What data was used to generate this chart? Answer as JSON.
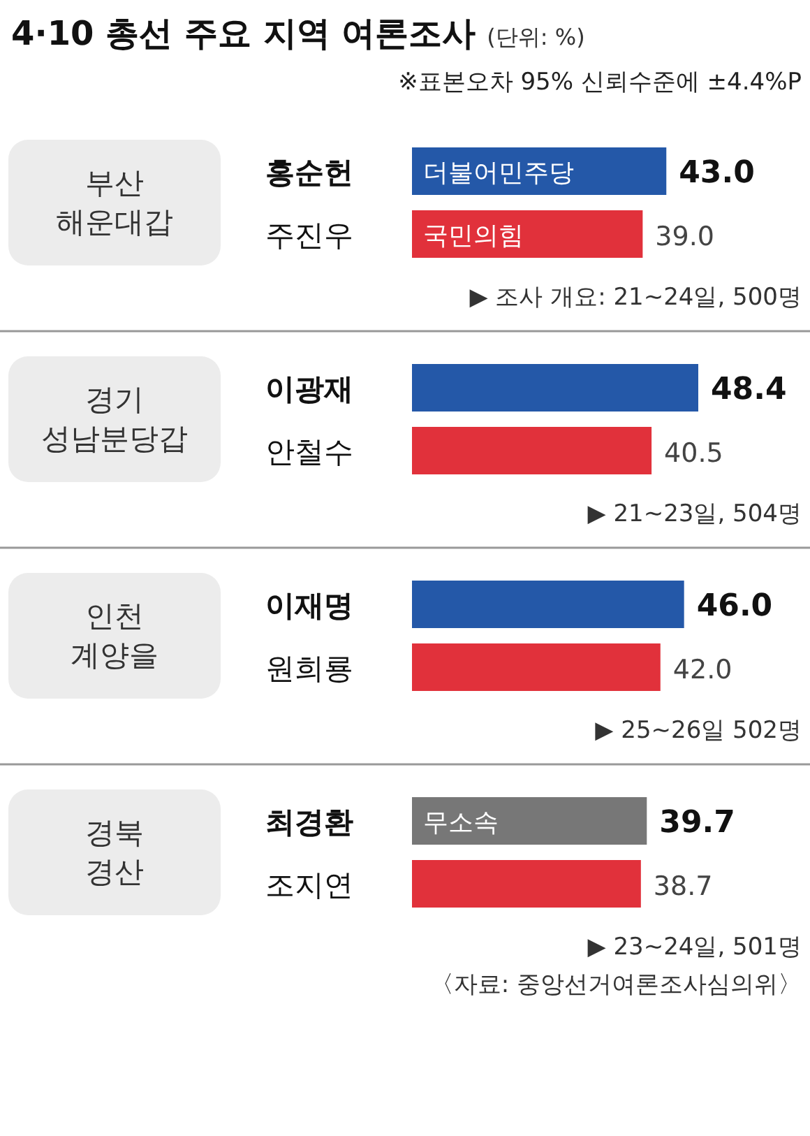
{
  "chart_data": [
    {
      "type": "other",
      "title": "4·10 총선 주요 지역 여론조사",
      "subtitle": "(단위: %)",
      "annotations": [
        "※표본오차 95% 신뢰수준에 ±4.4%P"
      ]
    },
    {
      "type": "bar",
      "orientation": "horizontal",
      "ylabel": "부산 해운대갑",
      "categories": [
        "홍순헌",
        "주진우"
      ],
      "values": [
        43.0,
        39.0
      ],
      "value_labels": [
        "43.0",
        "39.0"
      ],
      "colors": [
        "#2458a8",
        "#e1313b"
      ],
      "annotations": [
        {
          "text": "더불어민주당",
          "y": "홍순헌"
        },
        {
          "text": "국민의힘",
          "y": "주진우"
        },
        "▶ 조사 개요: 21~24일, 500명"
      ]
    },
    {
      "type": "bar",
      "orientation": "horizontal",
      "ylabel": "경기 성남분당갑",
      "categories": [
        "이광재",
        "안철수"
      ],
      "values": [
        48.4,
        40.5
      ],
      "value_labels": [
        "48.4",
        "40.5"
      ],
      "colors": [
        "#2458a8",
        "#e1313b"
      ],
      "annotations": [
        "▶ 21~23일, 504명"
      ]
    },
    {
      "type": "bar",
      "orientation": "horizontal",
      "ylabel": "인천 계양을",
      "categories": [
        "이재명",
        "원희룡"
      ],
      "values": [
        46.0,
        42.0
      ],
      "value_labels": [
        "46.0",
        "42.0"
      ],
      "colors": [
        "#2458a8",
        "#e1313b"
      ],
      "annotations": [
        "▶ 25~26일 502명"
      ]
    },
    {
      "type": "bar",
      "orientation": "horizontal",
      "ylabel": "경북 경산",
      "categories": [
        "최경환",
        "조지연"
      ],
      "values": [
        39.7,
        38.7
      ],
      "value_labels": [
        "39.7",
        "38.7"
      ],
      "colors": [
        "#777777",
        "#e1313b"
      ],
      "annotations": [
        {
          "text": "무소속",
          "y": "최경환"
        },
        "▶ 23~24일, 501명",
        "〈자료: 중앙선거여론조사심의위〉"
      ]
    }
  ]
}
